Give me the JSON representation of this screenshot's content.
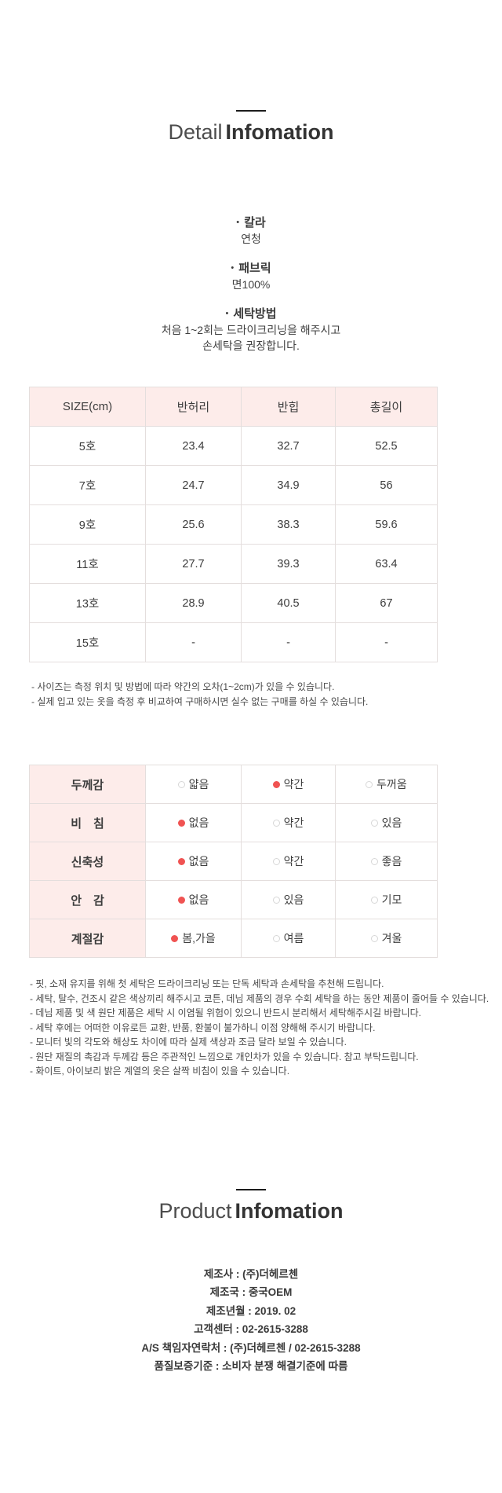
{
  "ui": {
    "bullet": "•"
  },
  "detail_section": {
    "title_light": "Detail",
    "title_bold": "Infomation",
    "specs": [
      {
        "label": "칼라",
        "lines": [
          "연청"
        ]
      },
      {
        "label": "패브릭",
        "lines": [
          "면100%"
        ]
      },
      {
        "label": "세탁방법",
        "lines": [
          "처음 1~2회는 드라이크리닝을 해주시고",
          "손세탁을 권장합니다."
        ]
      }
    ]
  },
  "size_table": {
    "headers": [
      "SIZE(cm)",
      "반허리",
      "반힙",
      "총길이"
    ],
    "rows": [
      [
        "5호",
        "23.4",
        "32.7",
        "52.5"
      ],
      [
        "7호",
        "24.7",
        "34.9",
        "56"
      ],
      [
        "9호",
        "25.6",
        "38.3",
        "59.6"
      ],
      [
        "11호",
        "27.7",
        "39.3",
        "63.4"
      ],
      [
        "13호",
        "28.9",
        "40.5",
        "67"
      ],
      [
        "15호",
        "-",
        "-",
        "-"
      ]
    ],
    "notes": [
      "- 사이즈는 측정 위치 및 방법에 따라 약간의 오차(1~2cm)가 있을 수 있습니다.",
      "- 실제 입고 있는 옷을 측정 후 비교하여 구매하시면 실수 없는 구매를 하실 수 있습니다."
    ]
  },
  "feature_table": {
    "rows": [
      {
        "label": "두께감",
        "options": [
          {
            "text": "얇음",
            "selected": false
          },
          {
            "text": "약간",
            "selected": true
          },
          {
            "text": "두꺼움",
            "selected": false
          }
        ]
      },
      {
        "label": "비　침",
        "options": [
          {
            "text": "없음",
            "selected": true
          },
          {
            "text": "약간",
            "selected": false
          },
          {
            "text": "있음",
            "selected": false
          }
        ]
      },
      {
        "label": "신축성",
        "options": [
          {
            "text": "없음",
            "selected": true
          },
          {
            "text": "약간",
            "selected": false
          },
          {
            "text": "좋음",
            "selected": false
          }
        ]
      },
      {
        "label": "안　감",
        "options": [
          {
            "text": "없음",
            "selected": true
          },
          {
            "text": "있음",
            "selected": false
          },
          {
            "text": "기모",
            "selected": false
          }
        ]
      },
      {
        "label": "계절감",
        "options": [
          {
            "text": "봄,가을",
            "selected": true
          },
          {
            "text": "여름",
            "selected": false
          },
          {
            "text": "겨울",
            "selected": false
          }
        ]
      }
    ]
  },
  "care_notes": [
    "- 핏, 소재 유지를 위해 첫 세탁은 드라이크리닝 또는 단독 세탁과 손세탁을 추천해 드립니다.",
    "- 세탁, 탈수, 건조시 같은 색상끼리 해주시고 코튼, 데님 제품의 경우 수회 세탁을 하는 동안 제품이 줄어들 수 있습니다.",
    "- 데님 제품 및 색 원단 제품은 세탁 시 이염될 위험이 있으니 반드시 분리해서 세탁해주시길 바랍니다.",
    "- 세탁 후에는 어떠한 이유로든 교환, 반품, 환불이 불가하니 이점 양해해 주시기 바랍니다.",
    "- 모니터 빛의 각도와 해상도 차이에 따라 실제 색상과 조금 달라 보일 수 있습니다.",
    "- 원단 재질의 촉감과 두께감 등은 주관적인 느낌으로 개인차가 있을 수 있습니다. 참고 부탁드립니다.",
    "- 화이트, 아이보리 밝은 계열의 옷은 살짝 비침이 있을 수 있습니다."
  ],
  "product_section": {
    "title_light": "Product",
    "title_bold": "Infomation",
    "info": [
      "제조사 : (주)더헤르첸",
      "제조국 : 중국OEM",
      "제조년월 : 2019. 02",
      "고객센터 : 02-2615-3288",
      "A/S 책임자연락처 : (주)더헤르첸 / 02-2615-3288",
      "품질보증기준 : 소비자 분쟁 해결기준에 따름"
    ]
  },
  "colors": {
    "accent_pink": "#fdecea",
    "dot_red": "#f05352",
    "border": "#e4dedd",
    "rule_black": "#1c1c1c"
  }
}
